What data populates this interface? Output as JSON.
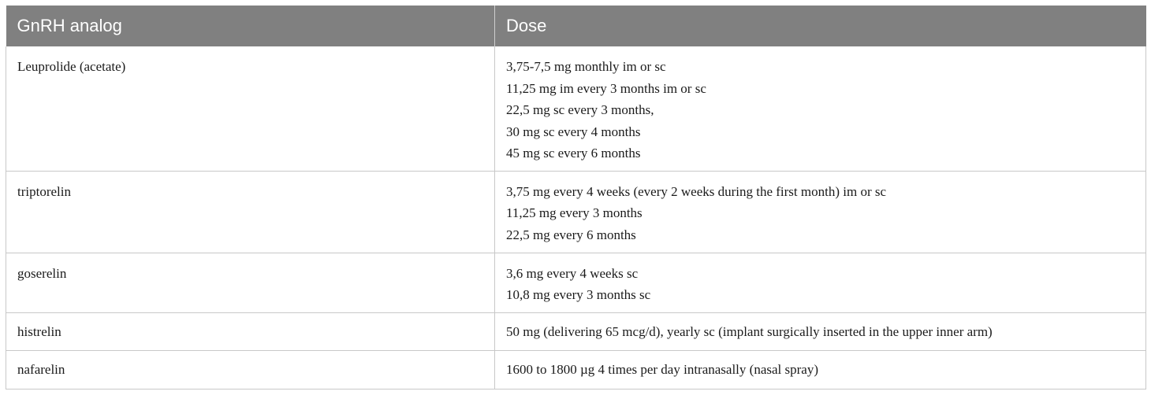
{
  "table": {
    "headers": [
      "GnRH analog",
      "Dose"
    ],
    "rows": [
      {
        "analog": "Leuprolide (acetate)",
        "dose": [
          "3,75-7,5 mg monthly im or sc",
          "11,25 mg im every 3 months im or sc",
          "22,5 mg sc every 3 months,",
          "30 mg sc every 4 months",
          "45 mg sc every 6 months"
        ]
      },
      {
        "analog": "triptorelin",
        "dose": [
          "3,75 mg every 4 weeks (every 2 weeks during the first month) im or sc",
          "11,25 mg every 3 months",
          "22,5 mg every 6 months"
        ]
      },
      {
        "analog": "goserelin",
        "dose": [
          "3,6 mg every 4 weeks sc",
          "10,8 mg every 3 months sc"
        ]
      },
      {
        "analog": "histrelin",
        "dose": [
          "50 mg (delivering 65 mcg/d), yearly sc (implant surgically inserted in the upper inner arm)"
        ]
      },
      {
        "analog": "nafarelin",
        "dose": [
          "1600 to 1800 µg 4 times per day intranasally (nasal spray)"
        ]
      }
    ]
  }
}
